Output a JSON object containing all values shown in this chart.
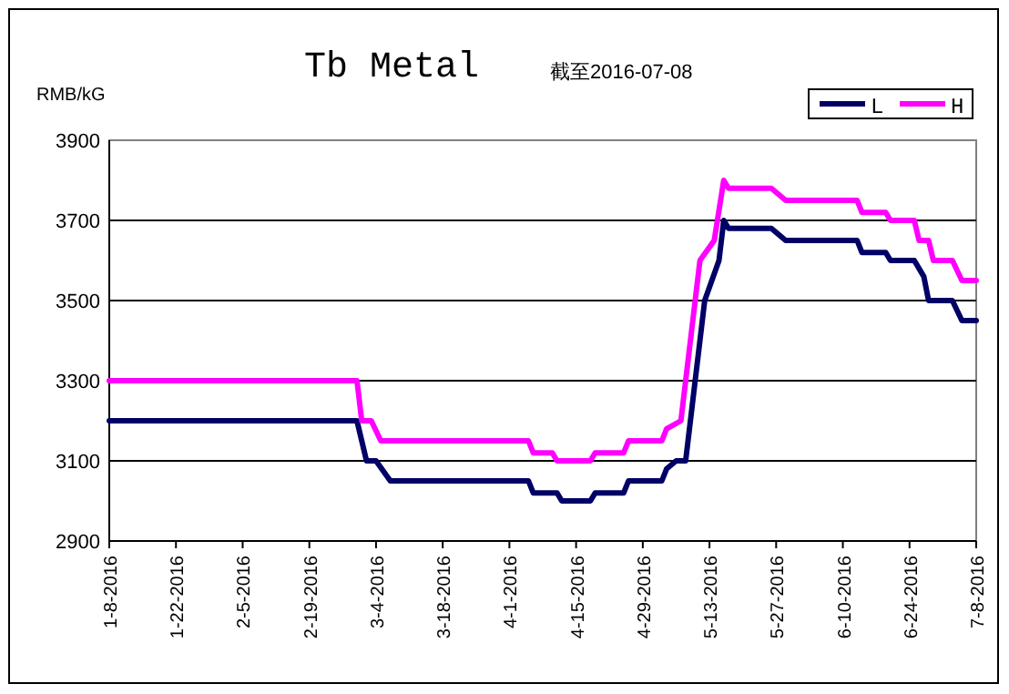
{
  "chart_data": {
    "type": "line",
    "title": "Tb Metal",
    "subtitle": "截至2016-07-08",
    "ylabel": "RMB/kG",
    "ylim": [
      2900,
      3900
    ],
    "yticks": [
      2900,
      3100,
      3300,
      3500,
      3700,
      3900
    ],
    "xlim": [
      "2016-01-08",
      "2016-07-08"
    ],
    "xticks": [
      {
        "value": "2016-01-08",
        "label": "1-8-2016"
      },
      {
        "value": "2016-01-22",
        "label": "1-22-2016"
      },
      {
        "value": "2016-02-05",
        "label": "2-5-2016"
      },
      {
        "value": "2016-02-19",
        "label": "2-19-2016"
      },
      {
        "value": "2016-03-04",
        "label": "3-4-2016"
      },
      {
        "value": "2016-03-18",
        "label": "3-18-2016"
      },
      {
        "value": "2016-04-01",
        "label": "4-1-2016"
      },
      {
        "value": "2016-04-15",
        "label": "4-15-2016"
      },
      {
        "value": "2016-04-29",
        "label": "4-29-2016"
      },
      {
        "value": "2016-05-13",
        "label": "5-13-2016"
      },
      {
        "value": "2016-05-27",
        "label": "5-27-2016"
      },
      {
        "value": "2016-06-10",
        "label": "6-10-2016"
      },
      {
        "value": "2016-06-24",
        "label": "6-24-2016"
      },
      {
        "value": "2016-07-08",
        "label": "7-8-2016"
      }
    ],
    "grid": "y",
    "legend": "top right",
    "line_style": "solid",
    "series": [
      {
        "name": "L",
        "color": "#000066",
        "x": [
          "2016-01-08",
          "2016-02-29",
          "2016-03-02",
          "2016-03-04",
          "2016-03-07",
          "2016-04-05",
          "2016-04-06",
          "2016-04-11",
          "2016-04-12",
          "2016-04-18",
          "2016-04-19",
          "2016-04-25",
          "2016-04-26",
          "2016-05-03",
          "2016-05-04",
          "2016-05-06",
          "2016-05-08",
          "2016-05-12",
          "2016-05-15",
          "2016-05-16",
          "2016-05-17",
          "2016-05-26",
          "2016-05-29",
          "2016-06-13",
          "2016-06-14",
          "2016-06-19",
          "2016-06-20",
          "2016-06-25",
          "2016-06-27",
          "2016-06-28",
          "2016-07-03",
          "2016-07-05",
          "2016-07-08"
        ],
        "values": [
          3200,
          3200,
          3100,
          3100,
          3050,
          3050,
          3020,
          3020,
          3000,
          3000,
          3020,
          3020,
          3050,
          3050,
          3080,
          3100,
          3100,
          3500,
          3600,
          3700,
          3680,
          3680,
          3650,
          3650,
          3620,
          3620,
          3600,
          3600,
          3560,
          3500,
          3500,
          3450,
          3450
        ]
      },
      {
        "name": "H",
        "color": "#ff00ff",
        "x": [
          "2016-01-08",
          "2016-02-29",
          "2016-03-01",
          "2016-03-03",
          "2016-03-05",
          "2016-04-05",
          "2016-04-06",
          "2016-04-10",
          "2016-04-11",
          "2016-04-18",
          "2016-04-19",
          "2016-04-25",
          "2016-04-26",
          "2016-05-03",
          "2016-05-04",
          "2016-05-07",
          "2016-05-11",
          "2016-05-14",
          "2016-05-16",
          "2016-05-17",
          "2016-05-26",
          "2016-05-29",
          "2016-06-13",
          "2016-06-14",
          "2016-06-19",
          "2016-06-20",
          "2016-06-25",
          "2016-06-26",
          "2016-06-28",
          "2016-06-29",
          "2016-07-03",
          "2016-07-05",
          "2016-07-08"
        ],
        "values": [
          3300,
          3300,
          3200,
          3200,
          3150,
          3150,
          3120,
          3120,
          3100,
          3100,
          3120,
          3120,
          3150,
          3150,
          3180,
          3200,
          3600,
          3650,
          3800,
          3780,
          3780,
          3750,
          3750,
          3720,
          3720,
          3700,
          3700,
          3650,
          3650,
          3600,
          3600,
          3550,
          3550
        ]
      }
    ]
  }
}
